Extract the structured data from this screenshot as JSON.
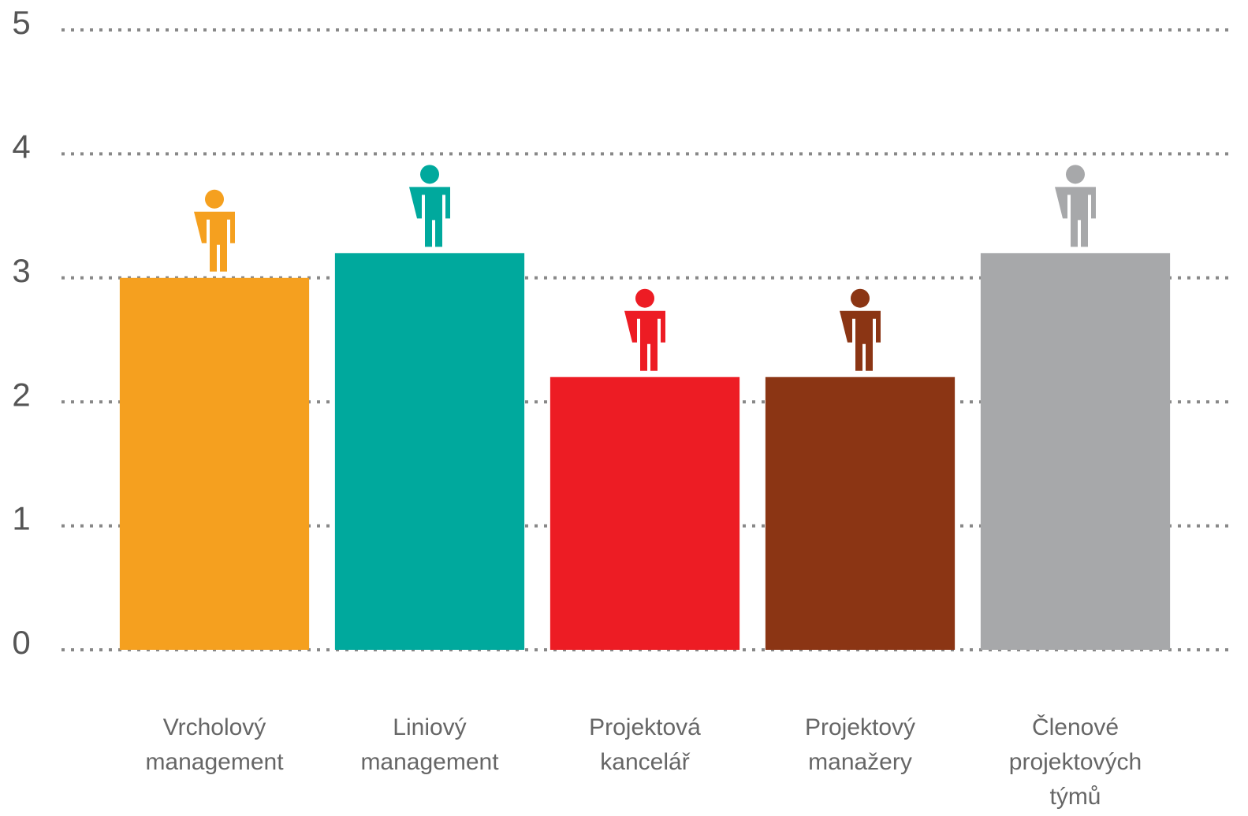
{
  "chart_data": {
    "type": "bar",
    "categories": [
      "Vrcholový management",
      "Liniový management",
      "Projektová kancelář",
      "Projektový manažery",
      "Členové projektových týmů"
    ],
    "values": [
      3.0,
      3.2,
      2.2,
      2.2,
      3.2
    ],
    "colors": [
      "#f5a01f",
      "#00a99d",
      "#ed1c24",
      "#8b3514",
      "#a7a8aa"
    ],
    "ylim": [
      0,
      5
    ],
    "yticks": [
      0,
      1,
      2,
      3,
      4,
      5
    ],
    "grid": true
  }
}
